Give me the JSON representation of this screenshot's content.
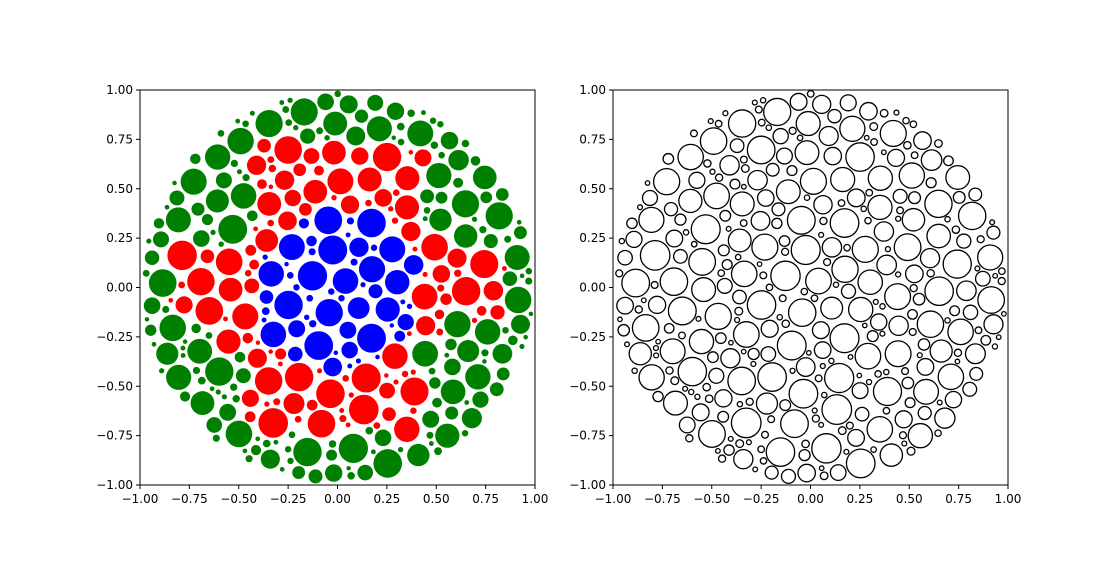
{
  "chart_data": [
    {
      "type": "scatter",
      "title": "",
      "xlabel": "",
      "ylabel": "",
      "xlim": [
        -1.0,
        1.0
      ],
      "ylim": [
        -1.0,
        1.0
      ],
      "grid": false,
      "legend": "none",
      "xticks": [
        "−1.00",
        "−0.75",
        "−0.50",
        "−0.25",
        "0.00",
        "0.25",
        "0.50",
        "0.75",
        "1.00"
      ],
      "yticks": [
        "−1.00",
        "−0.75",
        "−0.50",
        "−0.25",
        "0.00",
        "0.25",
        "0.50",
        "0.75",
        "1.00"
      ],
      "description_of_marks": "circle packing inside unit disk; blue = inner region, red = cross-shaped middle ring, green = outer ring",
      "colors": {
        "inner": "#0000ff",
        "middle": "#ff0000",
        "outer": "#008000"
      }
    },
    {
      "type": "scatter",
      "title": "",
      "xlabel": "",
      "ylabel": "",
      "xlim": [
        -1.0,
        1.0
      ],
      "ylim": [
        -1.0,
        1.0
      ],
      "grid": false,
      "legend": "none",
      "xticks": [
        "−1.00",
        "−0.75",
        "−0.50",
        "−0.25",
        "0.00",
        "0.25",
        "0.50",
        "0.75",
        "1.00"
      ],
      "yticks": [
        "−1.00",
        "−0.75",
        "−0.50",
        "−0.25",
        "0.00",
        "0.25",
        "0.50",
        "0.75",
        "1.00"
      ],
      "description_of_marks": "same circle packing inside unit disk drawn as white circles with black outlines",
      "colors": {
        "fill": "#ffffff",
        "stroke": "#000000"
      }
    }
  ]
}
